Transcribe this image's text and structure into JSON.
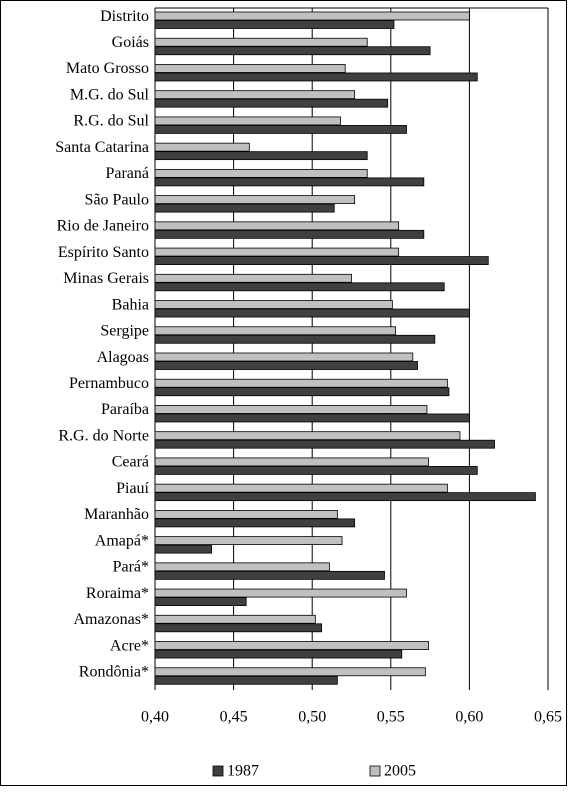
{
  "chart_data": {
    "type": "hbar",
    "categories": [
      "Distrito",
      "Goiás",
      "Mato Grosso",
      "M.G. do Sul",
      "R.G. do Sul",
      "Santa Catarina",
      "Paraná",
      "São Paulo",
      "Rio de Janeiro",
      "Espírito Santo",
      "Minas Gerais",
      "Bahia",
      "Sergipe",
      "Alagoas",
      "Pernambuco",
      "Paraíba",
      "R.G. do Norte",
      "Ceará",
      "Piauí",
      "Maranhão",
      "Amapá*",
      "Pará*",
      "Roraima*",
      "Amazonas*",
      "Acre*",
      "Rondônia*"
    ],
    "series": [
      {
        "name": "1987",
        "color": "#404040",
        "values": [
          0.552,
          0.575,
          0.605,
          0.548,
          0.56,
          0.535,
          0.571,
          0.514,
          0.571,
          0.612,
          0.584,
          0.6,
          0.578,
          0.567,
          0.587,
          0.6,
          0.616,
          0.605,
          0.642,
          0.527,
          0.436,
          0.546,
          0.458,
          0.506,
          0.557,
          0.516
        ]
      },
      {
        "name": "2005",
        "color": "#c0c0c0",
        "values": [
          0.6,
          0.535,
          0.521,
          0.527,
          0.518,
          0.46,
          0.535,
          0.527,
          0.555,
          0.555,
          0.525,
          0.551,
          0.553,
          0.564,
          0.586,
          0.573,
          0.594,
          0.574,
          0.586,
          0.516,
          0.519,
          0.511,
          0.56,
          0.502,
          0.574,
          0.572
        ]
      }
    ],
    "xlim": [
      0.4,
      0.65
    ],
    "xticks": [
      {
        "value": 0.4,
        "label": "0,40"
      },
      {
        "value": 0.45,
        "label": "0,45"
      },
      {
        "value": 0.5,
        "label": "0,50"
      },
      {
        "value": 0.55,
        "label": "0,55"
      },
      {
        "value": 0.6,
        "label": "0,60"
      },
      {
        "value": 0.65,
        "label": "0,65"
      }
    ],
    "grid": true,
    "legend": "bottom"
  }
}
